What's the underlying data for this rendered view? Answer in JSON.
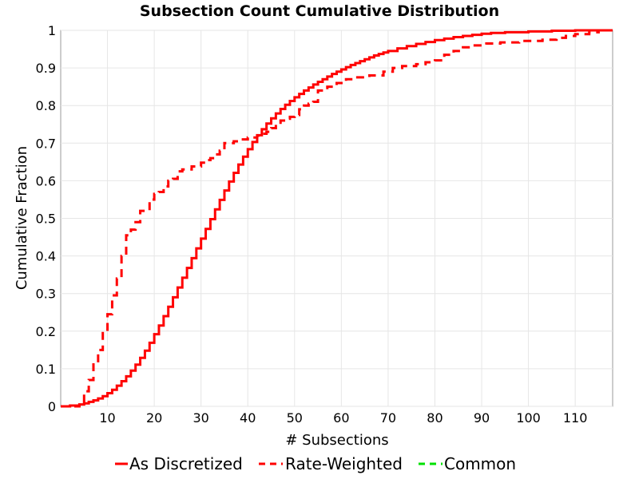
{
  "chart_data": {
    "type": "line",
    "title": "Subsection Count Cumulative Distribution",
    "xlabel": "# Subsections",
    "ylabel": "Cumulative Fraction",
    "xlim": [
      0,
      118
    ],
    "ylim": [
      0,
      1
    ],
    "xticks": [
      "10",
      "20",
      "30",
      "40",
      "50",
      "60",
      "70",
      "80",
      "90",
      "100",
      "110"
    ],
    "yticks": [
      "0",
      "0.1",
      "0.2",
      "0.3",
      "0.4",
      "0.5",
      "0.6",
      "0.7",
      "0.8",
      "0.9",
      "1"
    ],
    "grid": true,
    "legend_position": "bottom",
    "series": [
      {
        "name": "As Discretized",
        "color": "#ff0000",
        "style": "solid",
        "step": true,
        "points": [
          [
            0,
            0
          ],
          [
            2,
            0.002
          ],
          [
            4,
            0.005
          ],
          [
            5,
            0.008
          ],
          [
            6,
            0.012
          ],
          [
            7,
            0.016
          ],
          [
            8,
            0.021
          ],
          [
            9,
            0.027
          ],
          [
            10,
            0.035
          ],
          [
            11,
            0.044
          ],
          [
            12,
            0.055
          ],
          [
            13,
            0.067
          ],
          [
            14,
            0.08
          ],
          [
            15,
            0.095
          ],
          [
            16,
            0.111
          ],
          [
            17,
            0.129
          ],
          [
            18,
            0.148
          ],
          [
            19,
            0.169
          ],
          [
            20,
            0.192
          ],
          [
            21,
            0.215
          ],
          [
            22,
            0.24
          ],
          [
            23,
            0.265
          ],
          [
            24,
            0.29
          ],
          [
            25,
            0.316
          ],
          [
            26,
            0.342
          ],
          [
            27,
            0.368
          ],
          [
            28,
            0.394
          ],
          [
            29,
            0.42
          ],
          [
            30,
            0.446
          ],
          [
            31,
            0.472
          ],
          [
            32,
            0.498
          ],
          [
            33,
            0.524
          ],
          [
            34,
            0.549
          ],
          [
            35,
            0.574
          ],
          [
            36,
            0.598
          ],
          [
            37,
            0.621
          ],
          [
            38,
            0.643
          ],
          [
            39,
            0.664
          ],
          [
            40,
            0.684
          ],
          [
            41,
            0.703
          ],
          [
            42,
            0.721
          ],
          [
            43,
            0.737
          ],
          [
            44,
            0.752
          ],
          [
            45,
            0.766
          ],
          [
            46,
            0.779
          ],
          [
            47,
            0.791
          ],
          [
            48,
            0.802
          ],
          [
            49,
            0.812
          ],
          [
            50,
            0.822
          ],
          [
            51,
            0.831
          ],
          [
            52,
            0.84
          ],
          [
            53,
            0.848
          ],
          [
            54,
            0.856
          ],
          [
            55,
            0.863
          ],
          [
            56,
            0.87
          ],
          [
            57,
            0.877
          ],
          [
            58,
            0.884
          ],
          [
            59,
            0.89
          ],
          [
            60,
            0.896
          ],
          [
            61,
            0.902
          ],
          [
            62,
            0.908
          ],
          [
            63,
            0.913
          ],
          [
            64,
            0.918
          ],
          [
            65,
            0.923
          ],
          [
            66,
            0.928
          ],
          [
            67,
            0.933
          ],
          [
            68,
            0.937
          ],
          [
            69,
            0.941
          ],
          [
            70,
            0.945
          ],
          [
            72,
            0.952
          ],
          [
            74,
            0.958
          ],
          [
            76,
            0.964
          ],
          [
            78,
            0.969
          ],
          [
            80,
            0.974
          ],
          [
            82,
            0.978
          ],
          [
            84,
            0.982
          ],
          [
            86,
            0.985
          ],
          [
            88,
            0.988
          ],
          [
            90,
            0.991
          ],
          [
            92,
            0.993
          ],
          [
            95,
            0.995
          ],
          [
            100,
            0.997
          ],
          [
            105,
            0.999
          ],
          [
            110,
            1.0
          ],
          [
            118,
            1.0
          ]
        ]
      },
      {
        "name": "Rate-Weighted",
        "color": "#ff0000",
        "style": "dashed",
        "step": true,
        "points": [
          [
            0,
            0
          ],
          [
            4,
            0.01
          ],
          [
            5,
            0.04
          ],
          [
            6,
            0.07
          ],
          [
            7,
            0.115
          ],
          [
            8,
            0.15
          ],
          [
            9,
            0.2
          ],
          [
            10,
            0.245
          ],
          [
            11,
            0.295
          ],
          [
            12,
            0.34
          ],
          [
            13,
            0.4
          ],
          [
            14,
            0.455
          ],
          [
            15,
            0.47
          ],
          [
            16,
            0.49
          ],
          [
            17,
            0.52
          ],
          [
            19,
            0.55
          ],
          [
            20,
            0.565
          ],
          [
            21,
            0.57
          ],
          [
            22,
            0.585
          ],
          [
            23,
            0.6
          ],
          [
            24,
            0.605
          ],
          [
            25,
            0.625
          ],
          [
            26,
            0.63
          ],
          [
            28,
            0.638
          ],
          [
            30,
            0.648
          ],
          [
            31,
            0.655
          ],
          [
            32,
            0.66
          ],
          [
            33,
            0.67
          ],
          [
            34,
            0.68
          ],
          [
            35,
            0.7
          ],
          [
            37,
            0.705
          ],
          [
            38,
            0.71
          ],
          [
            40,
            0.715
          ],
          [
            42,
            0.72
          ],
          [
            43,
            0.725
          ],
          [
            44,
            0.73
          ],
          [
            45,
            0.74
          ],
          [
            46,
            0.75
          ],
          [
            47,
            0.76
          ],
          [
            48,
            0.765
          ],
          [
            49,
            0.77
          ],
          [
            50,
            0.775
          ],
          [
            51,
            0.79
          ],
          [
            52,
            0.8
          ],
          [
            53,
            0.805
          ],
          [
            54,
            0.81
          ],
          [
            55,
            0.84
          ],
          [
            57,
            0.85
          ],
          [
            59,
            0.86
          ],
          [
            61,
            0.87
          ],
          [
            63,
            0.875
          ],
          [
            66,
            0.88
          ],
          [
            69,
            0.89
          ],
          [
            71,
            0.9
          ],
          [
            73,
            0.905
          ],
          [
            76,
            0.91
          ],
          [
            78,
            0.915
          ],
          [
            80,
            0.92
          ],
          [
            82,
            0.935
          ],
          [
            84,
            0.945
          ],
          [
            86,
            0.955
          ],
          [
            88,
            0.96
          ],
          [
            91,
            0.965
          ],
          [
            94,
            0.968
          ],
          [
            98,
            0.972
          ],
          [
            103,
            0.975
          ],
          [
            106,
            0.98
          ],
          [
            108,
            0.985
          ],
          [
            110,
            0.99
          ],
          [
            113,
            0.995
          ],
          [
            115,
            1.0
          ],
          [
            118,
            1.0
          ]
        ]
      },
      {
        "name": "Common",
        "color": "#00e000",
        "style": "dashed",
        "step": true,
        "points": []
      }
    ]
  }
}
